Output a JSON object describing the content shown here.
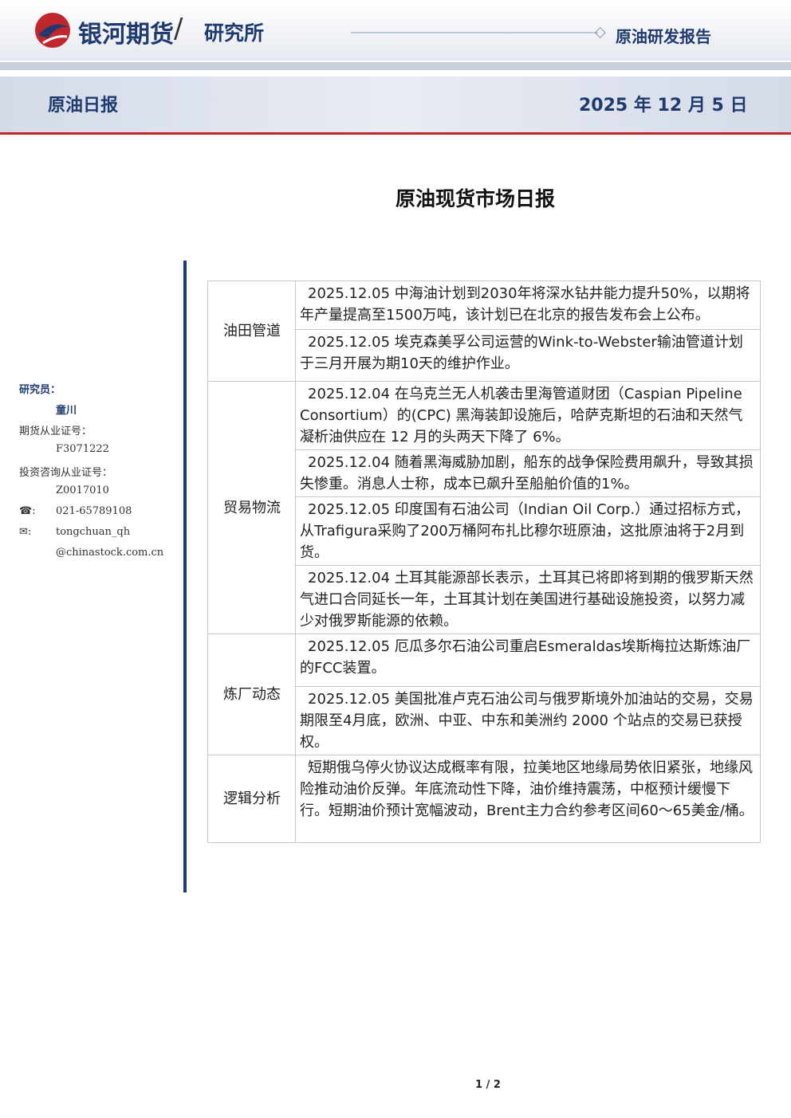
{
  "header": {
    "brand": "银河期货",
    "slash": "/",
    "institute": "研究所",
    "report_type": "原油研发报告"
  },
  "banner": {
    "left": "原油日报",
    "date": "2025 年 12 月 5 日"
  },
  "title": "原油现货市场日报",
  "sidebar": {
    "lines": [
      "研究员：",
      "童川",
      "期货从业证号：",
      "F3071222",
      "投资咨询从业证号：",
      "Z0017010",
      "☎:",
      "021-65789108",
      "✉:",
      "tongchuan_qh",
      "@chinastock.com.cn"
    ]
  },
  "table": {
    "sections": [
      {
        "category": "油田管道",
        "items": [
          "2025.12.05 中海油计划到2030年将深水钻井能力提升50%，以期将年产量提高至1500万吨，该计划已在北京的报告发布会上公布。",
          "2025.12.05 埃克森美孚公司运营的Wink-to-Webster输油管道计划于三月开展为期10天的维护作业。"
        ]
      },
      {
        "category": "贸易物流",
        "items": [
          "2025.12.04 在乌克兰无人机袭击里海管道财团（Caspian Pipeline Consortium）的(CPC) 黑海装卸设施后，哈萨克斯坦的石油和天然气凝析油供应在 12 月的头两天下降了 6%。",
          "2025.12.04 随着黑海威胁加剧，船东的战争保险费用飙升，导致其损失惨重。消息人士称，成本已飙升至船舶价值的1%。",
          "2025.12.05 印度国有石油公司（Indian Oil Corp.）通过招标方式，从Trafigura采购了200万桶阿布扎比穆尔班原油，这批原油将于2月到货。",
          "2025.12.04 土耳其能源部长表示，土耳其已将即将到期的俄罗斯天然气进口合同延长一年，土耳其计划在美国进行基础设施投资，以努力减少对俄罗斯能源的依赖。"
        ]
      },
      {
        "category": "炼厂动态",
        "items": [
          "2025.12.05 厄瓜多尔石油公司重启Esmeraldas埃斯梅拉达斯炼油厂的FCC装置。",
          "2025.12.05 美国批准卢克石油公司与俄罗斯境外加油站的交易，交易期限至4月底，欧洲、中亚、中东和美洲约 2000 个站点的交易已获授权。"
        ]
      },
      {
        "category": "逻辑分析",
        "items": [
          "短期俄乌停火协议达成概率有限，拉美地区地缘局势依旧紧张，地缘风险推动油价反弹。年底流动性下降，油价维持震荡，中枢预计缓慢下行。短期油价预计宽幅波动，Brent主力合约参考区间60～65美金/桶。"
        ]
      }
    ]
  },
  "footer": {
    "page": "1 / 2"
  }
}
